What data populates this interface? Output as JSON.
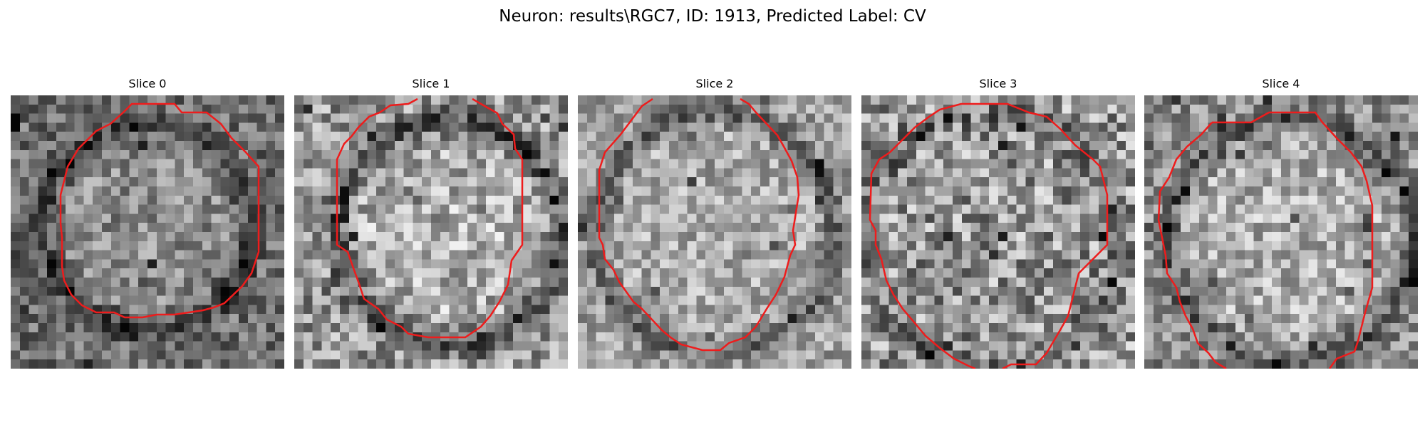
{
  "figure": {
    "title": "Neuron: results\\RGC7, ID: 1913, Predicted Label: CV",
    "colormap": "grayscale",
    "contour_color": "#ee1c1c",
    "panels": [
      {
        "title": "Slice 0",
        "texture": "dark rim around a smoother mid-gray disc",
        "contour": "closed octagon-like ring fully inside the frame"
      },
      {
        "title": "Slice 1",
        "texture": "bright speckled interior with darker rim",
        "contour": "ring with a gap at the top edge"
      },
      {
        "title": "Slice 2",
        "texture": "dark ring surrounding a lighter disc",
        "contour": "ring clipped at the top edge"
      },
      {
        "title": "Slice 3",
        "texture": "noisy high-contrast texture",
        "contour": "ring clipped at the bottom edge"
      },
      {
        "title": "Slice 4",
        "texture": "bright interior with dark lower rim",
        "contour": "ring open at the bottom edge"
      }
    ]
  }
}
